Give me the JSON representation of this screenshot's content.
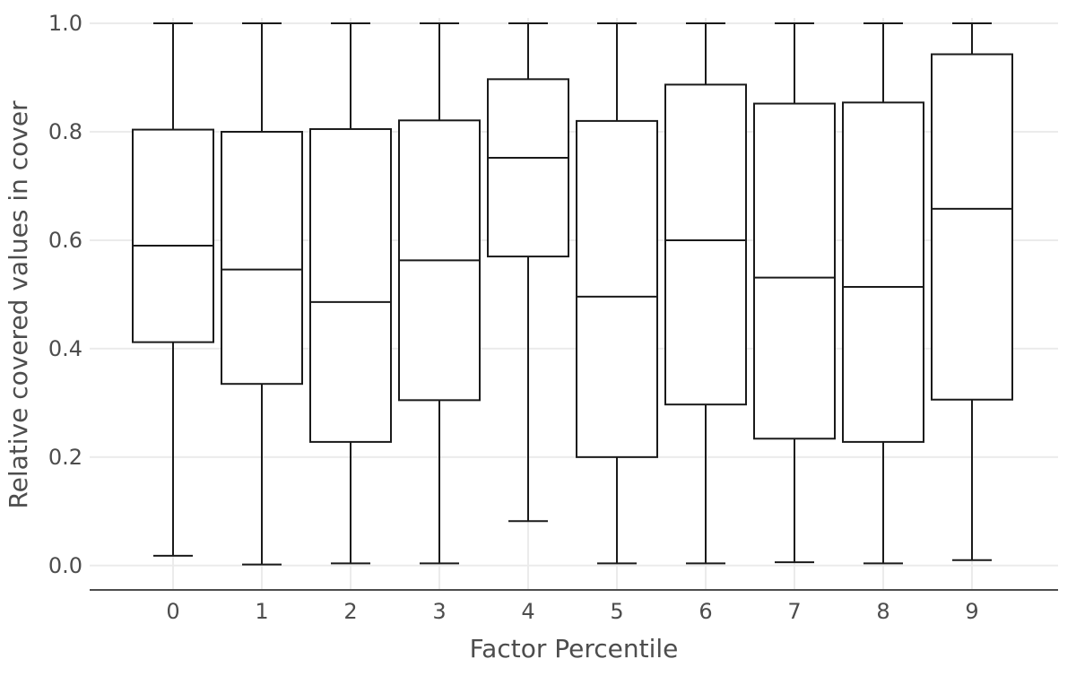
{
  "chart_data": {
    "type": "box",
    "title": "",
    "xlabel": "Factor Percentile",
    "ylabel": "Relative covered values in cover",
    "ylim": [
      -0.045,
      1.01
    ],
    "yticks": [
      0.0,
      0.2,
      0.4,
      0.6,
      0.8,
      1.0
    ],
    "ytick_labels": [
      "0.0",
      "0.2",
      "0.4",
      "0.6",
      "0.8",
      "1.0"
    ],
    "grid": true,
    "legend": "none",
    "categories": [
      "0",
      "1",
      "2",
      "3",
      "4",
      "5",
      "6",
      "7",
      "8",
      "9"
    ],
    "boxes": [
      {
        "category": "0",
        "min": 0.018,
        "q1": 0.412,
        "median": 0.59,
        "q3": 0.804,
        "max": 1.0
      },
      {
        "category": "1",
        "min": 0.002,
        "q1": 0.335,
        "median": 0.546,
        "q3": 0.8,
        "max": 1.0
      },
      {
        "category": "2",
        "min": 0.004,
        "q1": 0.228,
        "median": 0.486,
        "q3": 0.805,
        "max": 1.0
      },
      {
        "category": "3",
        "min": 0.004,
        "q1": 0.305,
        "median": 0.563,
        "q3": 0.821,
        "max": 1.0
      },
      {
        "category": "4",
        "min": 0.082,
        "q1": 0.57,
        "median": 0.752,
        "q3": 0.897,
        "max": 1.0
      },
      {
        "category": "5",
        "min": 0.004,
        "q1": 0.2,
        "median": 0.496,
        "q3": 0.82,
        "max": 1.0
      },
      {
        "category": "6",
        "min": 0.004,
        "q1": 0.297,
        "median": 0.6,
        "q3": 0.887,
        "max": 1.0
      },
      {
        "category": "7",
        "min": 0.006,
        "q1": 0.234,
        "median": 0.531,
        "q3": 0.852,
        "max": 1.0
      },
      {
        "category": "8",
        "min": 0.004,
        "q1": 0.228,
        "median": 0.514,
        "q3": 0.854,
        "max": 1.0
      },
      {
        "category": "9",
        "min": 0.01,
        "q1": 0.306,
        "median": 0.658,
        "q3": 0.943,
        "max": 1.0
      }
    ],
    "colors": {
      "box_fill": "#ffffff",
      "box_stroke": "#1a1a1a",
      "grid": "#ebebeb",
      "axis": "#4d4d4d",
      "text": "#4d4d4d"
    }
  }
}
